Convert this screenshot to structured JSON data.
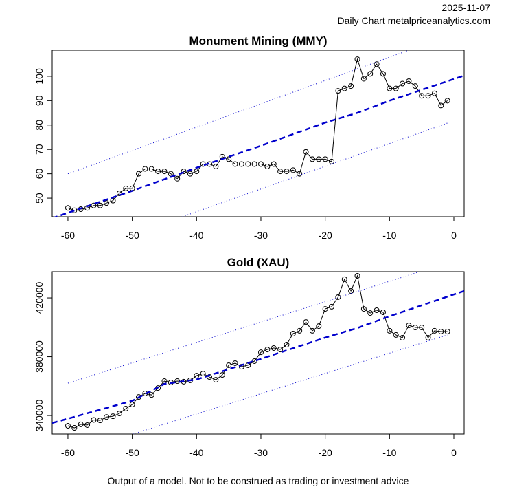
{
  "date": "2025-11-07",
  "source": "Daily Chart metalpriceanalytics.com",
  "footer": "Output of a model. Not to be construed as trading or investment advice",
  "chart_data": [
    {
      "type": "line",
      "title": "Monument Mining (MMY)",
      "xlim": [
        -62.45,
        1.6
      ],
      "xticks": [
        -60,
        -50,
        -40,
        -30,
        -20,
        -10,
        0
      ],
      "ylim": [
        42.4,
        110.7
      ],
      "yticks": [
        50,
        60,
        70,
        80,
        90,
        100
      ],
      "x": [
        -60,
        -59,
        -58,
        -57,
        -56,
        -55,
        -54,
        -53,
        -52,
        -51,
        -50,
        -49,
        -48,
        -47,
        -46,
        -45,
        -44,
        -43,
        -42,
        -41,
        -40,
        -39,
        -38,
        -37,
        -36,
        -35,
        -34,
        -33,
        -32,
        -31,
        -30,
        -29,
        -28,
        -27,
        -26,
        -25,
        -24,
        -23,
        -22,
        -21,
        -20,
        -19,
        -18,
        -17,
        -16,
        -15,
        -14,
        -13,
        -12,
        -11,
        -10,
        -9,
        -8,
        -7,
        -6,
        -5,
        -4,
        -3,
        -2,
        -1
      ],
      "series": [
        {
          "color": "#000000",
          "style": "solid",
          "markers": true,
          "values": [
            46,
            45,
            45.5,
            46,
            47,
            47,
            48,
            49,
            52,
            54,
            54,
            60,
            62,
            62,
            61,
            61,
            60,
            58,
            61,
            60,
            61,
            64,
            64,
            63,
            67,
            66,
            64,
            64,
            64,
            64,
            64,
            63,
            64,
            61,
            61,
            61.5,
            60,
            69,
            66,
            66,
            66,
            65,
            94,
            95,
            96,
            107,
            99,
            101,
            105,
            101,
            95,
            95,
            97,
            98,
            96,
            92,
            92,
            93,
            88,
            90
          ]
        },
        {
          "color": "#0000cc",
          "style": "dashed",
          "markers": false,
          "x": [
            -62.45,
            -50,
            -40,
            -35,
            -30,
            -20,
            -15,
            -10,
            1.6
          ],
          "values": [
            41.8,
            53,
            62.5,
            67,
            71.5,
            81,
            85,
            90,
            100.3
          ]
        },
        {
          "color": "#0000cc",
          "style": "dotted",
          "markers": false,
          "x": [
            -60,
            -7
          ],
          "values": [
            60,
            110.7
          ]
        },
        {
          "color": "#0000cc",
          "style": "dotted",
          "markers": false,
          "x": [
            -42.2,
            -1
          ],
          "values": [
            42.4,
            80.8
          ]
        }
      ]
    },
    {
      "type": "line",
      "title": "Gold (XAU)",
      "xlim": [
        -62.45,
        1.6
      ],
      "xticks": [
        -60,
        -50,
        -40,
        -30,
        -20,
        -10,
        0
      ],
      "ylim": [
        327400,
        437800
      ],
      "yticks": [
        340000,
        380000,
        420000
      ],
      "x": [
        -60,
        -59,
        -58,
        -57,
        -56,
        -55,
        -54,
        -53,
        -52,
        -51,
        -50,
        -49,
        -48,
        -47,
        -46,
        -45,
        -44,
        -43,
        -42,
        -41,
        -40,
        -39,
        -38,
        -37,
        -36,
        -35,
        -34,
        -33,
        -32,
        -31,
        -30,
        -29,
        -28,
        -27,
        -26,
        -25,
        -24,
        -23,
        -22,
        -21,
        -20,
        -19,
        -18,
        -17,
        -16,
        -15,
        -14,
        -13,
        -12,
        -11,
        -10,
        -9,
        -8,
        -7,
        -6,
        -5,
        -4,
        -3,
        -2,
        -1
      ],
      "series": [
        {
          "color": "#000000",
          "style": "solid",
          "markers": true,
          "values": [
            333000,
            331600,
            334000,
            333500,
            337000,
            336700,
            339000,
            339500,
            341400,
            344700,
            347500,
            352600,
            355000,
            354000,
            358700,
            363400,
            362500,
            363400,
            363000,
            363900,
            367100,
            368500,
            366200,
            364300,
            367600,
            374200,
            375600,
            373200,
            374200,
            377000,
            383000,
            384900,
            385900,
            384900,
            388200,
            395700,
            397600,
            403600,
            397600,
            400800,
            412500,
            414000,
            420500,
            432700,
            424700,
            435000,
            412500,
            409700,
            411600,
            410200,
            397600,
            394800,
            392900,
            401300,
            399900,
            399900,
            392900,
            397600,
            397100,
            397100
          ]
        },
        {
          "color": "#0000cc",
          "style": "dashed",
          "markers": false,
          "x": [
            -62.45,
            -50,
            -45,
            -40,
            -30,
            -20,
            -15,
            -10,
            1.6
          ],
          "values": [
            334900,
            350000,
            361500,
            364500,
            378500,
            393000,
            399500,
            407500,
            424700
          ]
        },
        {
          "color": "#0000cc",
          "style": "dotted",
          "markers": false,
          "x": [
            -60,
            -5.3
          ],
          "values": [
            362000,
            437800
          ]
        },
        {
          "color": "#0000cc",
          "style": "dotted",
          "markers": false,
          "x": [
            -49.9,
            -1
          ],
          "values": [
            327400,
            394800
          ]
        }
      ]
    }
  ]
}
